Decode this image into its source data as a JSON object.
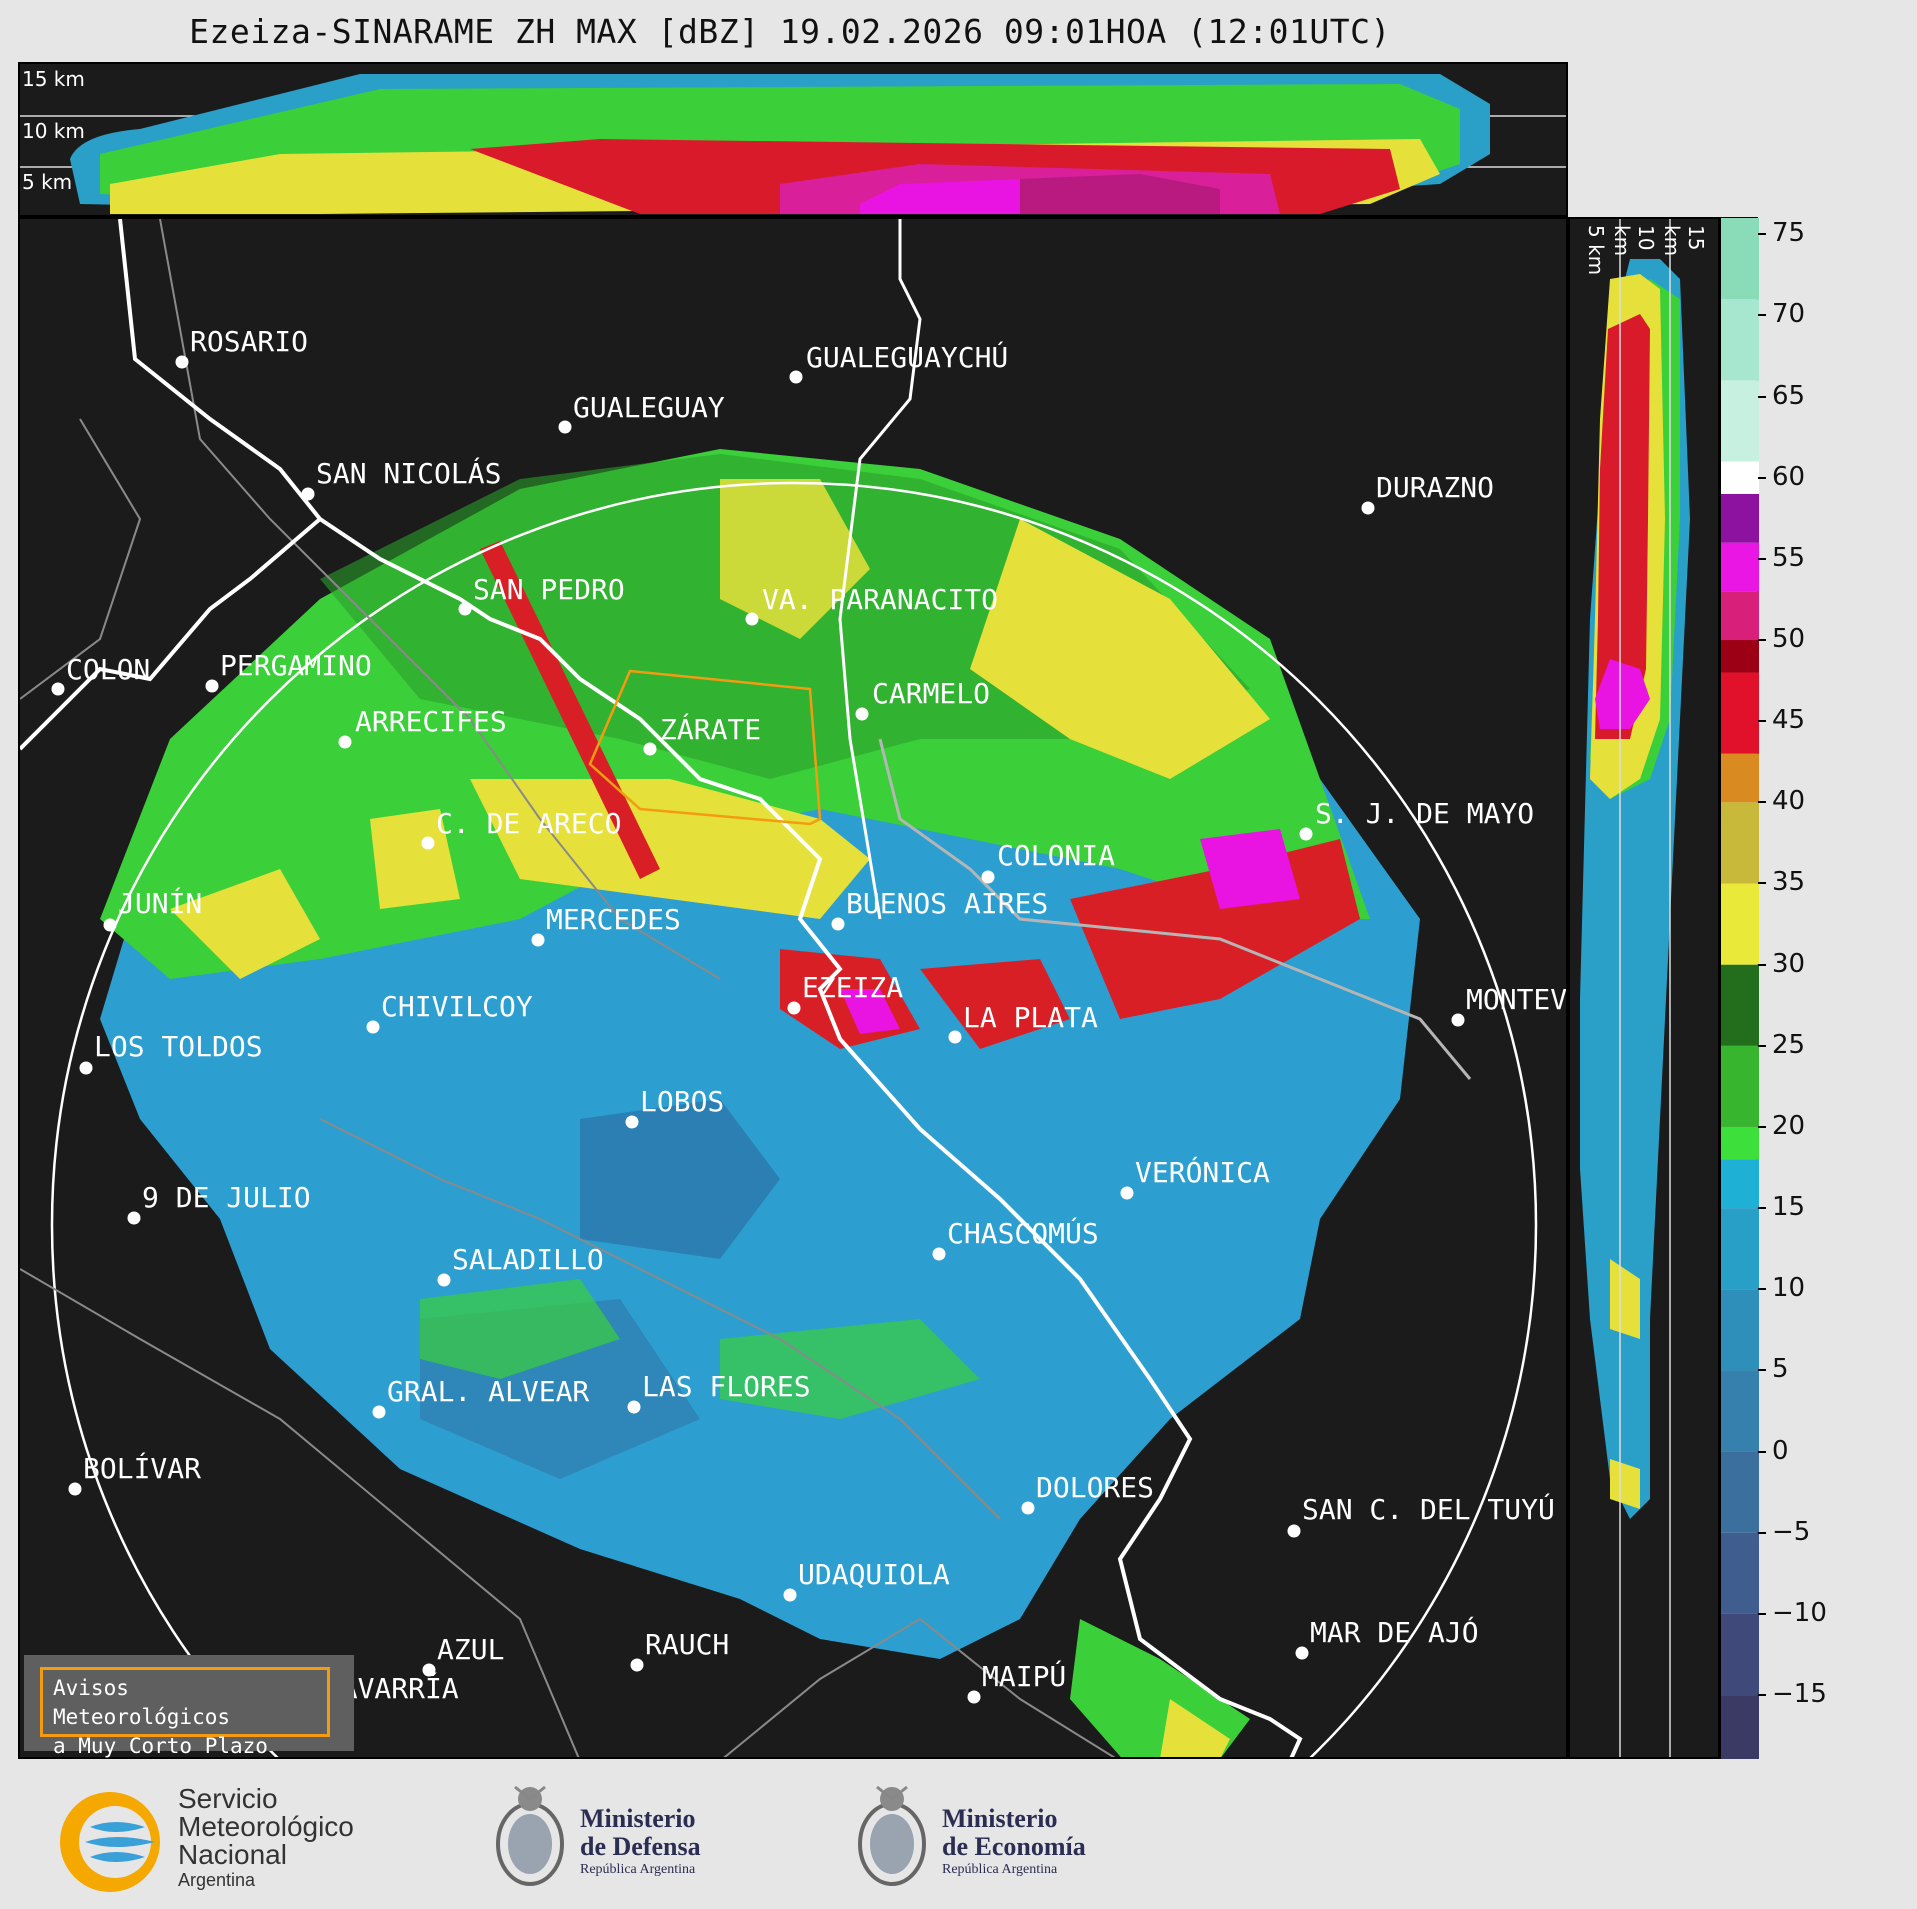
{
  "title": "Ezeiza-SINARAME ZH MAX [dBZ] 19.02.2026 09:01HOA (12:01UTC)",
  "top_panel": {
    "height_labels": [
      "15 km",
      "10 km",
      "5 km"
    ]
  },
  "side_panel": {
    "height_labels": [
      "5 km",
      "10 km",
      "15 km"
    ]
  },
  "colorbar": {
    "unit": "dBZ",
    "ticks": [
      "75",
      "70",
      "65",
      "60",
      "55",
      "50",
      "45",
      "40",
      "35",
      "30",
      "25",
      "20",
      "15",
      "10",
      "5",
      "0",
      "−5",
      "−10",
      "−15"
    ],
    "tick_values": [
      75,
      70,
      65,
      60,
      55,
      50,
      45,
      40,
      35,
      30,
      25,
      20,
      15,
      10,
      5,
      0,
      -5,
      -10,
      -15
    ],
    "range": [
      -19,
      76
    ],
    "bands": [
      {
        "from": -19,
        "to": -15,
        "color": "#3b3a64"
      },
      {
        "from": -15,
        "to": -10,
        "color": "#3f4a7a"
      },
      {
        "from": -10,
        "to": -5,
        "color": "#3f5d8e"
      },
      {
        "from": -5,
        "to": 0,
        "color": "#3b6f9e"
      },
      {
        "from": 0,
        "to": 5,
        "color": "#3580ad"
      },
      {
        "from": 5,
        "to": 10,
        "color": "#2e8fbb"
      },
      {
        "from": 10,
        "to": 15,
        "color": "#279fc7"
      },
      {
        "from": 15,
        "to": 18,
        "color": "#1fb0d6"
      },
      {
        "from": 18,
        "to": 20,
        "color": "#3de03a"
      },
      {
        "from": 20,
        "to": 25,
        "color": "#37b52f"
      },
      {
        "from": 25,
        "to": 30,
        "color": "#236e1c"
      },
      {
        "from": 30,
        "to": 35,
        "color": "#e9e93a"
      },
      {
        "from": 35,
        "to": 40,
        "color": "#c9b93a"
      },
      {
        "from": 40,
        "to": 43,
        "color": "#d98a20"
      },
      {
        "from": 43,
        "to": 48,
        "color": "#e2112b"
      },
      {
        "from": 48,
        "to": 50,
        "color": "#9c0014"
      },
      {
        "from": 50,
        "to": 53,
        "color": "#d8207a"
      },
      {
        "from": 53,
        "to": 56,
        "color": "#ea16e4"
      },
      {
        "from": 56,
        "to": 59,
        "color": "#8e12a0"
      },
      {
        "from": 59,
        "to": 61,
        "color": "#ffffff"
      },
      {
        "from": 61,
        "to": 66,
        "color": "#c8f0e0"
      },
      {
        "from": 66,
        "to": 71,
        "color": "#a7e6cf"
      },
      {
        "from": 71,
        "to": 76,
        "color": "#8adbb8"
      }
    ]
  },
  "cities": [
    {
      "name": "ROSARIO"
    },
    {
      "name": "GUALEGUAYCHÚ"
    },
    {
      "name": "GUALEGUAY"
    },
    {
      "name": "SAN NICOLÁS"
    },
    {
      "name": "DURAZNO"
    },
    {
      "name": "SAN PEDRO"
    },
    {
      "name": "VA. PARANACITO"
    },
    {
      "name": "COLON"
    },
    {
      "name": "PERGAMINO"
    },
    {
      "name": "CARMELO"
    },
    {
      "name": "ARRECIFES"
    },
    {
      "name": "ZÁRATE"
    },
    {
      "name": "S. J. DE MAYO"
    },
    {
      "name": "C. DE ARECO"
    },
    {
      "name": "COLONIA"
    },
    {
      "name": "BUENOS AIRES"
    },
    {
      "name": "JUNÍN"
    },
    {
      "name": "MERCEDES"
    },
    {
      "name": "EZEIZA"
    },
    {
      "name": "MONTEVIDEO"
    },
    {
      "name": "CHIVILCOY"
    },
    {
      "name": "LA PLATA"
    },
    {
      "name": "LOS TOLDOS"
    },
    {
      "name": "LOBOS"
    },
    {
      "name": "VERÓNICA"
    },
    {
      "name": "9 DE JULIO"
    },
    {
      "name": "CHASCOMÚS"
    },
    {
      "name": "SALADILLO"
    },
    {
      "name": "GRAL. ALVEAR"
    },
    {
      "name": "LAS FLORES"
    },
    {
      "name": "BOLÍVAR"
    },
    {
      "name": "DOLORES"
    },
    {
      "name": "SAN C. DEL TUYÚ"
    },
    {
      "name": "UDAQUIOLA"
    },
    {
      "name": "MAR DE AJÓ"
    },
    {
      "name": "RAUCH"
    },
    {
      "name": "AZUL"
    },
    {
      "name": "OLAVARRÍA"
    },
    {
      "name": "MAIPÚ"
    }
  ],
  "warning_box": {
    "line1": "Avisos Meteorológicos",
    "line2": "a Muy Corto Plazo",
    "border_color": "#f39c12"
  },
  "footer": {
    "smn": {
      "line1": "Servicio",
      "line2": "Meteorológico",
      "line3": "Nacional",
      "line4": "Argentina"
    },
    "defensa": {
      "line1": "Ministerio",
      "line2": "de Defensa",
      "line3": "República Argentina"
    },
    "economia": {
      "line1": "Ministerio",
      "line2": "de Economía",
      "line3": "República Argentina"
    }
  }
}
